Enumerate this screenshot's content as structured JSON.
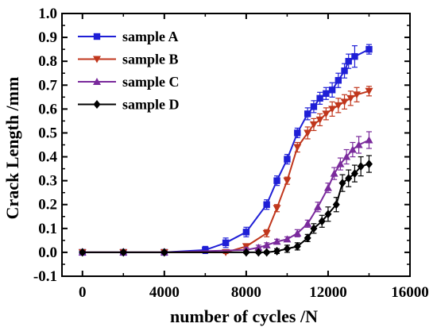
{
  "chart_data": {
    "type": "line",
    "xlabel": "number of cycles /N",
    "ylabel": "Crack Length /mm",
    "xlim": [
      -1000,
      16000
    ],
    "ylim": [
      -0.1,
      1.0
    ],
    "xticks": [
      0,
      4000,
      8000,
      12000,
      16000
    ],
    "xtick_labels": [
      "0",
      "4000",
      "8000",
      "12000",
      "16000"
    ],
    "yticks": [
      -0.1,
      0.0,
      0.1,
      0.2,
      0.3,
      0.4,
      0.5,
      0.6,
      0.7,
      0.8,
      0.9,
      1.0
    ],
    "ytick_labels": [
      "-0.1",
      "0.0",
      "0.1",
      "0.2",
      "0.3",
      "0.4",
      "0.5",
      "0.6",
      "0.7",
      "0.8",
      "0.9",
      "1.0"
    ],
    "grid": false,
    "legend_position": "top-left",
    "series": [
      {
        "name": "sample A",
        "color": "#1f1fd6",
        "marker": "square",
        "x": [
          0,
          2000,
          4000,
          6000,
          7000,
          8000,
          9000,
          9500,
          10000,
          10500,
          11000,
          11300,
          11600,
          11900,
          12200,
          12500,
          12800,
          13000,
          13300,
          14000
        ],
        "y": [
          0.0,
          0.0,
          0.0,
          0.01,
          0.04,
          0.085,
          0.2,
          0.3,
          0.39,
          0.5,
          0.58,
          0.61,
          0.645,
          0.665,
          0.68,
          0.72,
          0.76,
          0.8,
          0.82,
          0.85
        ],
        "err": [
          0.005,
          0.005,
          0.005,
          0.015,
          0.02,
          0.02,
          0.02,
          0.02,
          0.02,
          0.02,
          0.025,
          0.025,
          0.025,
          0.025,
          0.03,
          0.03,
          0.03,
          0.03,
          0.045,
          0.02
        ]
      },
      {
        "name": "sample B",
        "color": "#c0361c",
        "marker": "triangle-down",
        "x": [
          0,
          2000,
          4000,
          7000,
          8000,
          9000,
          9500,
          10000,
          10500,
          11000,
          11300,
          11600,
          11900,
          12200,
          12500,
          12800,
          13100,
          13400,
          14000
        ],
        "y": [
          0.0,
          0.0,
          0.0,
          0.0,
          0.025,
          0.08,
          0.185,
          0.3,
          0.44,
          0.5,
          0.535,
          0.555,
          0.58,
          0.6,
          0.615,
          0.63,
          0.645,
          0.66,
          0.675
        ],
        "err": [
          0.005,
          0.005,
          0.005,
          0.005,
          0.01,
          0.015,
          0.015,
          0.015,
          0.02,
          0.025,
          0.025,
          0.025,
          0.025,
          0.03,
          0.03,
          0.03,
          0.03,
          0.03,
          0.02
        ]
      },
      {
        "name": "sample C",
        "color": "#7a2a9c",
        "marker": "triangle-up",
        "x": [
          0,
          2000,
          4000,
          8000,
          8600,
          9000,
          9500,
          10000,
          10500,
          11000,
          11500,
          12000,
          12300,
          12600,
          12900,
          13200,
          13500,
          14000
        ],
        "y": [
          0.0,
          0.0,
          0.0,
          0.01,
          0.02,
          0.03,
          0.045,
          0.055,
          0.08,
          0.12,
          0.19,
          0.27,
          0.33,
          0.37,
          0.4,
          0.43,
          0.45,
          0.47
        ],
        "err": [
          0.005,
          0.005,
          0.005,
          0.01,
          0.01,
          0.01,
          0.01,
          0.01,
          0.015,
          0.015,
          0.02,
          0.02,
          0.025,
          0.025,
          0.03,
          0.03,
          0.035,
          0.035
        ]
      },
      {
        "name": "sample D",
        "color": "#000000",
        "marker": "diamond",
        "x": [
          0,
          2000,
          4000,
          8000,
          8600,
          9000,
          9500,
          10000,
          10500,
          11000,
          11300,
          11700,
          12000,
          12400,
          12700,
          13000,
          13300,
          13600,
          14000
        ],
        "y": [
          0.0,
          0.0,
          0.0,
          0.0,
          0.0,
          0.0,
          0.005,
          0.015,
          0.025,
          0.06,
          0.1,
          0.13,
          0.16,
          0.2,
          0.29,
          0.31,
          0.33,
          0.36,
          0.37
        ],
        "err": [
          0.005,
          0.005,
          0.005,
          0.005,
          0.005,
          0.005,
          0.01,
          0.015,
          0.015,
          0.015,
          0.02,
          0.025,
          0.03,
          0.03,
          0.035,
          0.035,
          0.035,
          0.04,
          0.035
        ]
      }
    ]
  }
}
